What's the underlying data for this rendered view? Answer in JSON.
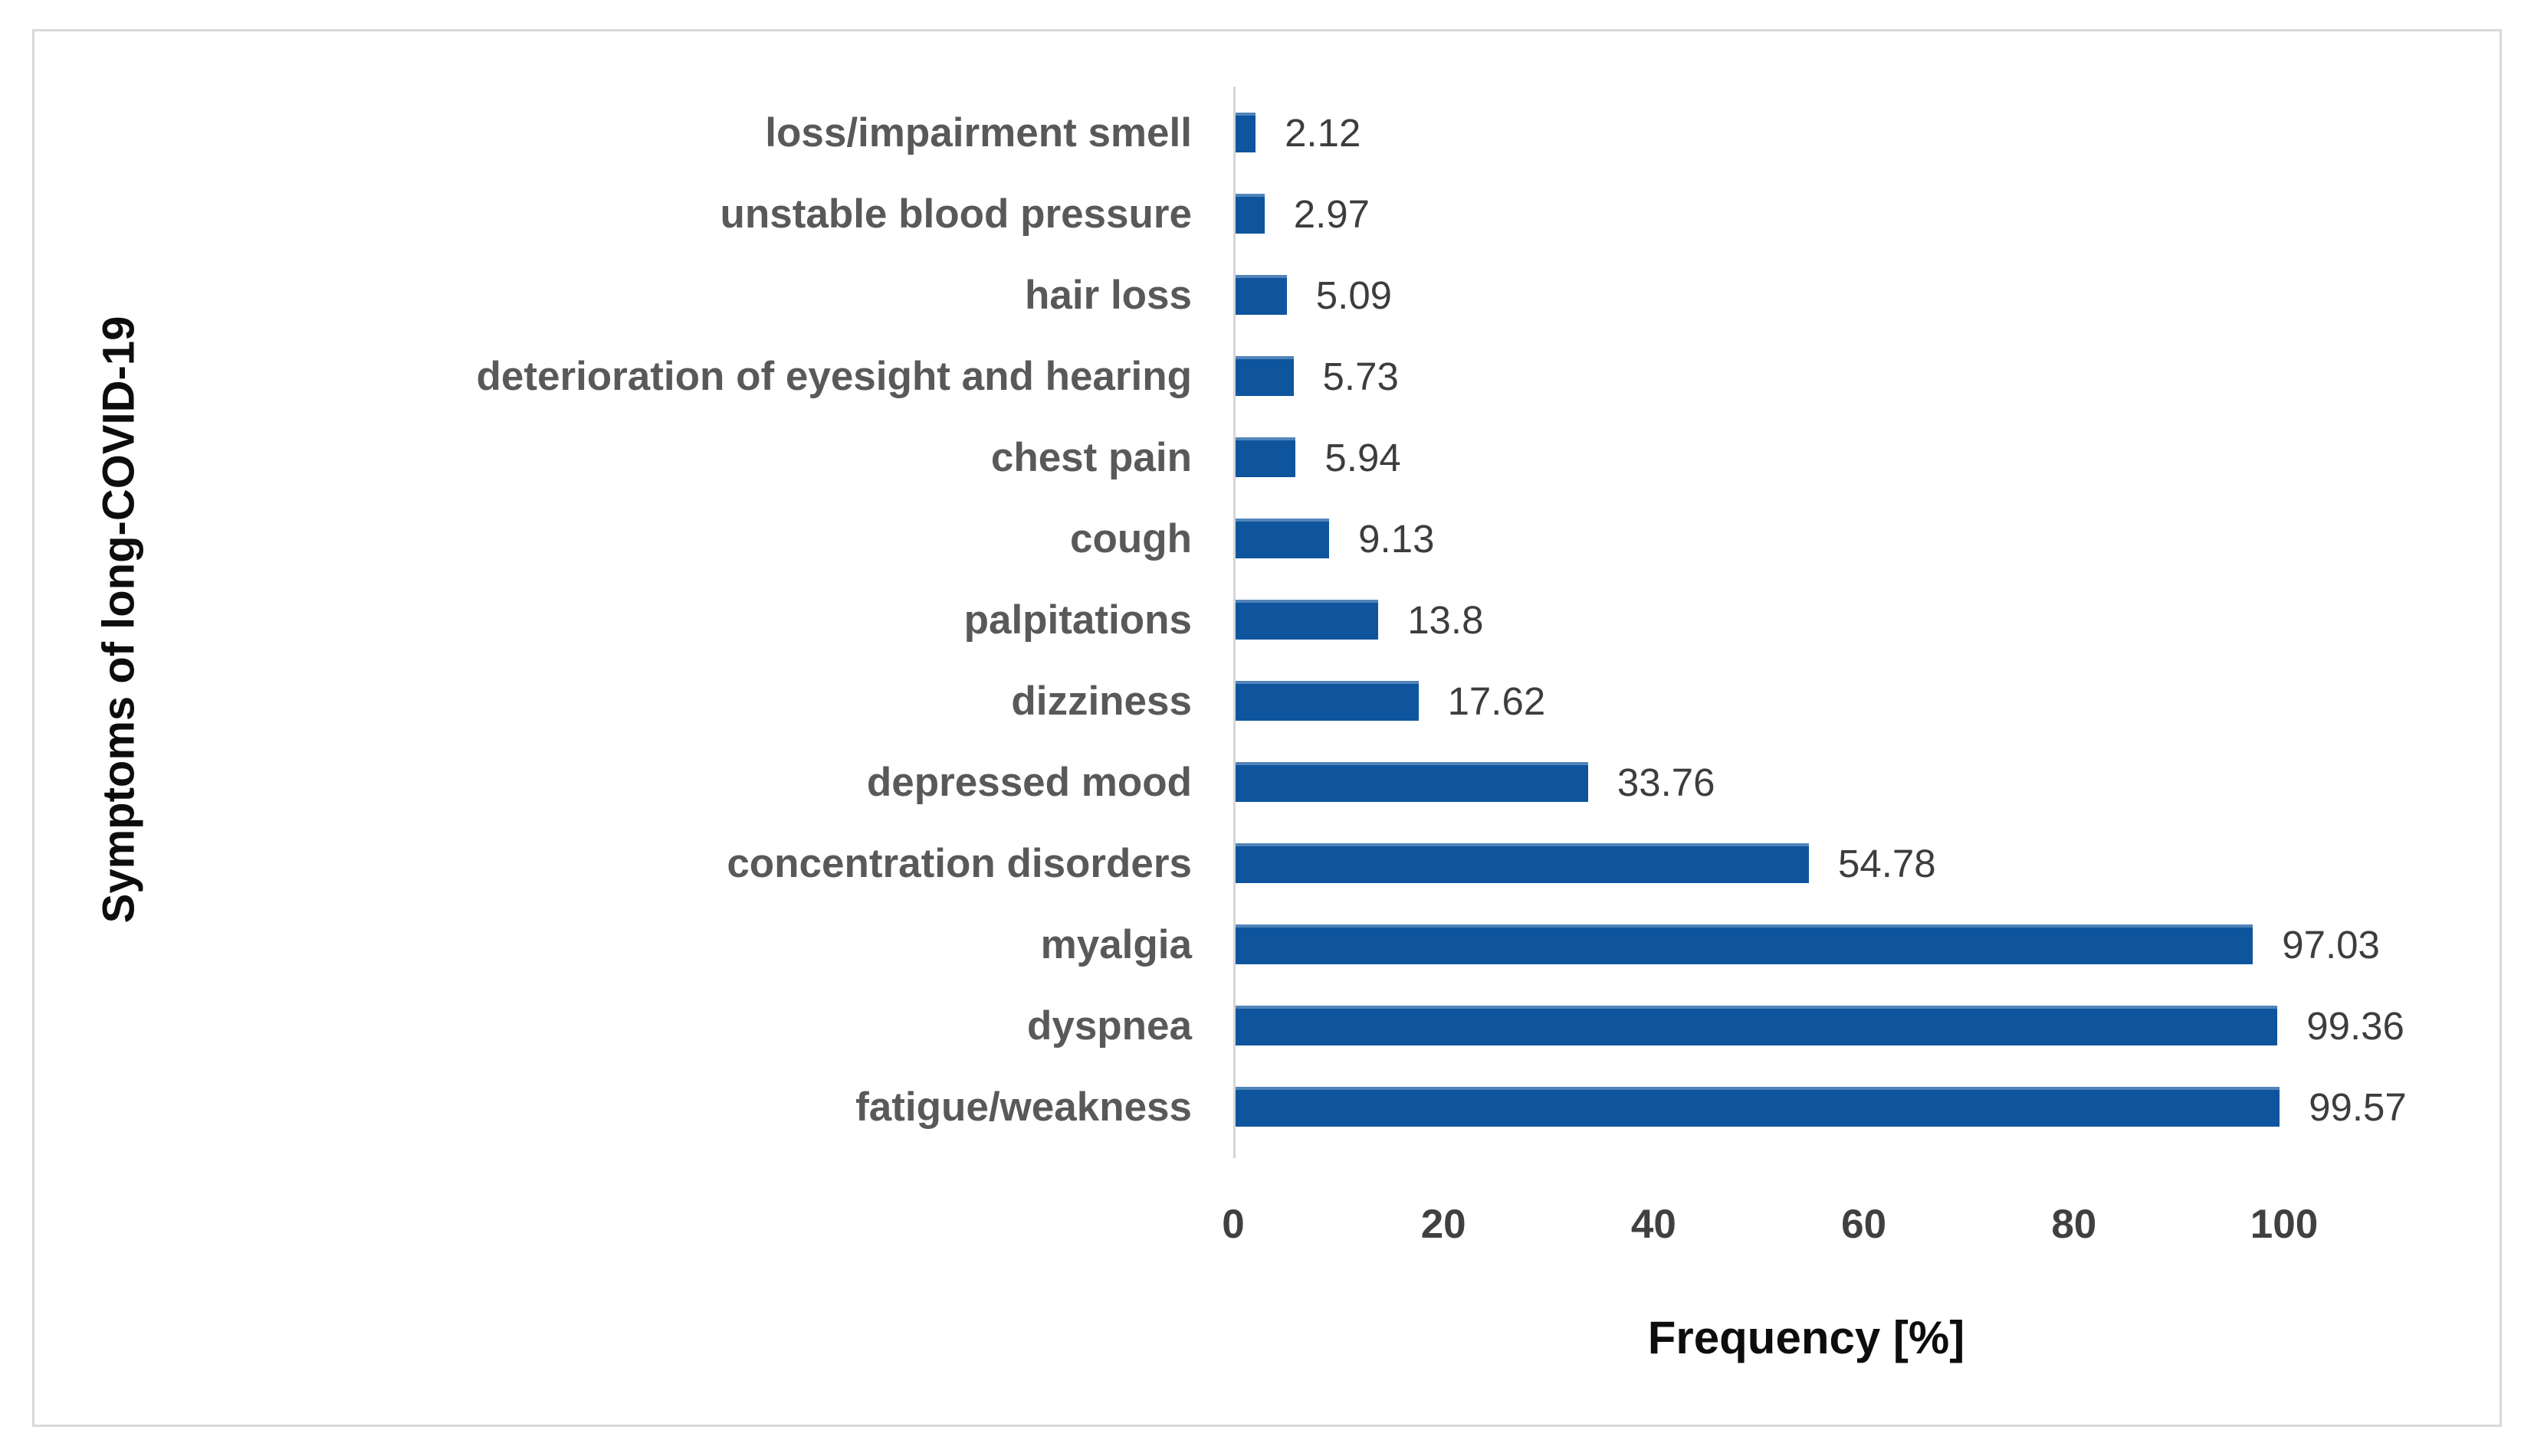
{
  "chart_data": {
    "type": "bar",
    "orientation": "horizontal",
    "categories": [
      "loss/impairment smell",
      "unstable blood pressure",
      "hair loss",
      "deterioration of eyesight and hearing",
      "chest pain",
      "cough",
      "palpitations",
      "dizziness",
      "depressed mood",
      "concentration disorders",
      "myalgia",
      "dyspnea",
      "fatigue/weakness"
    ],
    "values": [
      2.12,
      2.97,
      5.09,
      5.73,
      5.94,
      9.13,
      13.8,
      17.62,
      33.76,
      54.78,
      97.03,
      99.36,
      99.57
    ],
    "value_labels": [
      "2.12",
      "2.97",
      "5.09",
      "5.73",
      "5.94",
      "9.13",
      "13.8",
      "17.62",
      "33.76",
      "54.78",
      "97.03",
      "99.36",
      "99.57"
    ],
    "xlabel": "Frequency [%]",
    "ylabel": "Symptoms of long-COVID-19",
    "xlim": [
      0,
      100
    ],
    "x_ticks": [
      0,
      20,
      40,
      60,
      80,
      100
    ],
    "grid": false,
    "legend": false,
    "bar_color": "#0e559e",
    "category_label_color": "#595959",
    "value_label_color": "#3d3d3d",
    "axis_title_color": "#0d0d0d",
    "axis_line_color": "#d6d6d6",
    "border_color": "#d9d9d9"
  }
}
